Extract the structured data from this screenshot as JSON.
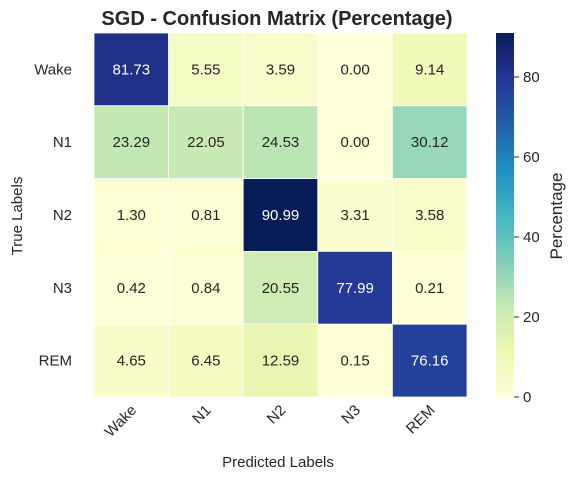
{
  "chart_data": {
    "type": "heatmap",
    "title": "SGD - Confusion Matrix (Percentage)",
    "xlabel": "Predicted Labels",
    "ylabel": "True Labels",
    "x_categories": [
      "Wake",
      "N1",
      "N2",
      "N3",
      "REM"
    ],
    "y_categories": [
      "Wake",
      "N1",
      "N2",
      "N3",
      "REM"
    ],
    "values": [
      [
        81.73,
        5.55,
        3.59,
        0.0,
        9.14
      ],
      [
        23.29,
        22.05,
        24.53,
        0.0,
        30.12
      ],
      [
        1.3,
        0.81,
        90.99,
        3.31,
        3.58
      ],
      [
        0.42,
        0.84,
        20.55,
        77.99,
        0.21
      ],
      [
        4.65,
        6.45,
        12.59,
        0.15,
        76.16
      ]
    ],
    "value_format": "0.00",
    "colormap": "YlGnBu",
    "colorbar": {
      "label": "Percentage",
      "range": [
        0,
        90.99
      ],
      "ticks": [
        0,
        20,
        40,
        60,
        80
      ]
    },
    "grid": false
  }
}
